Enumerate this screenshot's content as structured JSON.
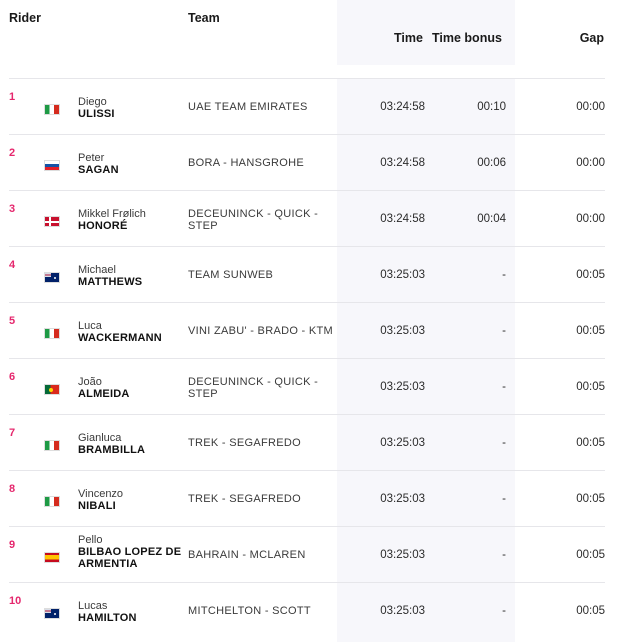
{
  "headers": {
    "rider": "Rider",
    "team": "Team",
    "time": "Time",
    "time_bonus": "Time bonus",
    "gap": "Gap"
  },
  "rows": [
    {
      "pos": "1",
      "country": "it",
      "first": "Diego",
      "last": "ULISSI",
      "team": "UAE TEAM EMIRATES",
      "time": "03:24:58",
      "bonus": "00:10",
      "gap": "00:00"
    },
    {
      "pos": "2",
      "country": "sk",
      "first": "Peter",
      "last": "SAGAN",
      "team": "BORA - HANSGROHE",
      "time": "03:24:58",
      "bonus": "00:06",
      "gap": "00:00"
    },
    {
      "pos": "3",
      "country": "dk",
      "first": "Mikkel Frølich",
      "last": "HONORÉ",
      "team": "DECEUNINCK - QUICK - STEP",
      "time": "03:24:58",
      "bonus": "00:04",
      "gap": "00:00"
    },
    {
      "pos": "4",
      "country": "au",
      "first": "Michael",
      "last": "MATTHEWS",
      "team": "TEAM SUNWEB",
      "time": "03:25:03",
      "bonus": "-",
      "gap": "00:05"
    },
    {
      "pos": "5",
      "country": "it",
      "first": "Luca",
      "last": "WACKERMANN",
      "team": "VINI ZABU' - BRADO - KTM",
      "time": "03:25:03",
      "bonus": "-",
      "gap": "00:05"
    },
    {
      "pos": "6",
      "country": "pt",
      "first": "João",
      "last": "ALMEIDA",
      "team": "DECEUNINCK - QUICK - STEP",
      "time": "03:25:03",
      "bonus": "-",
      "gap": "00:05"
    },
    {
      "pos": "7",
      "country": "it",
      "first": "Gianluca",
      "last": "BRAMBILLA",
      "team": "TREK - SEGAFREDO",
      "time": "03:25:03",
      "bonus": "-",
      "gap": "00:05"
    },
    {
      "pos": "8",
      "country": "it",
      "first": "Vincenzo",
      "last": "NIBALI",
      "team": "TREK - SEGAFREDO",
      "time": "03:25:03",
      "bonus": "-",
      "gap": "00:05"
    },
    {
      "pos": "9",
      "country": "es",
      "first": "Pello",
      "last": "BILBAO LOPEZ DE ARMENTIA",
      "team": "BAHRAIN - MCLAREN",
      "time": "03:25:03",
      "bonus": "-",
      "gap": "00:05"
    },
    {
      "pos": "10",
      "country": "au",
      "first": "Lucas",
      "last": "HAMILTON",
      "team": "MITCHELTON - SCOTT",
      "time": "03:25:03",
      "bonus": "-",
      "gap": "00:05"
    }
  ]
}
